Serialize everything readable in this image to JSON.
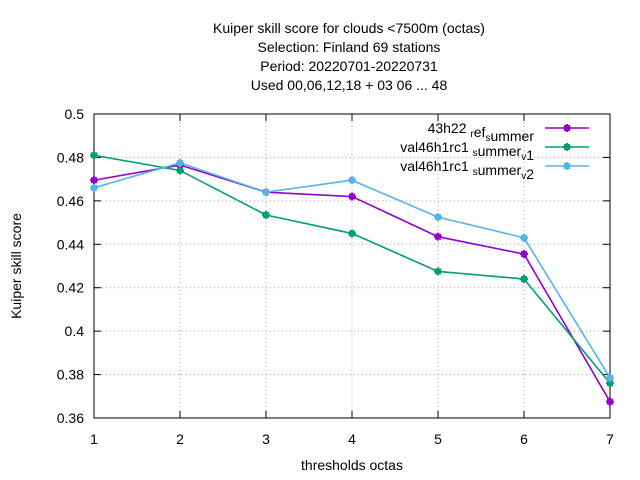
{
  "chart_data": {
    "type": "line",
    "title_lines": [
      "Kuiper skill score  for clouds <7500m (octas)",
      "Selection: Finland      69 stations",
      "Period: 20220701-20220731",
      "Used  00,06,12,18  + 03 06 ... 48"
    ],
    "xlabel": "thresholds octas",
    "ylabel": "Kuiper skill score",
    "x": [
      1,
      2,
      3,
      4,
      5,
      6,
      7
    ],
    "xlim": [
      1,
      7
    ],
    "ylim": [
      0.36,
      0.5
    ],
    "xticks": [
      "1",
      "2",
      "3",
      "4",
      "5",
      "6",
      "7"
    ],
    "yticks": [
      {
        "value": 0.36,
        "label": "0.36"
      },
      {
        "value": 0.38,
        "label": "0.38"
      },
      {
        "value": 0.4,
        "label": "0.4"
      },
      {
        "value": 0.42,
        "label": "0.42"
      },
      {
        "value": 0.44,
        "label": "0.44"
      },
      {
        "value": 0.46,
        "label": "0.46"
      },
      {
        "value": 0.48,
        "label": "0.48"
      },
      {
        "value": 0.5,
        "label": "0.5"
      }
    ],
    "grid": true,
    "legend_position": "top-right",
    "series": [
      {
        "name": "43h22_ref_summer",
        "legend": {
          "parts": [
            {
              "t": "43h22 "
            },
            {
              "t": "r",
              "sub": true
            },
            {
              "t": "ef"
            },
            {
              "t": "s",
              "sub": true
            },
            {
              "t": "ummer"
            }
          ]
        },
        "color": "#9400d3",
        "values": [
          0.4695,
          0.4765,
          0.464,
          0.462,
          0.4435,
          0.4355,
          0.3675
        ]
      },
      {
        "name": "val46h1rc1_summer_v1",
        "legend": {
          "parts": [
            {
              "t": "val46h1rc1 "
            },
            {
              "t": "s",
              "sub": true
            },
            {
              "t": "ummer"
            },
            {
              "t": "v",
              "sub": true
            },
            {
              "t": "1"
            }
          ]
        },
        "color": "#009e73",
        "values": [
          0.481,
          0.474,
          0.4535,
          0.445,
          0.4275,
          0.424,
          0.376
        ]
      },
      {
        "name": "val46h1rc1_summer_v2",
        "legend": {
          "parts": [
            {
              "t": "val46h1rc1 "
            },
            {
              "t": "s",
              "sub": true
            },
            {
              "t": "ummer"
            },
            {
              "t": "v",
              "sub": true
            },
            {
              "t": "2"
            }
          ]
        },
        "color": "#56b4e9",
        "values": [
          0.466,
          0.4775,
          0.464,
          0.4695,
          0.4525,
          0.443,
          0.3785
        ]
      }
    ]
  }
}
